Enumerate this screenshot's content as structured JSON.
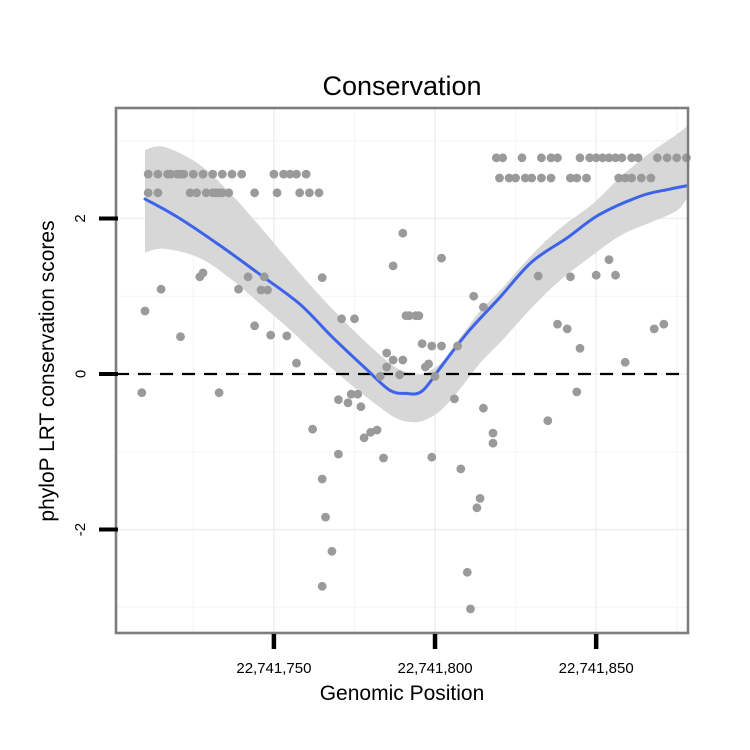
{
  "title": "Conservation",
  "axes": {
    "x": {
      "label": "Genomic Position",
      "ticks": [
        {
          "value": 22741750,
          "label": "22,741,750"
        },
        {
          "value": 22741800,
          "label": "22,741,800"
        },
        {
          "value": 22741850,
          "label": "22,741,850"
        }
      ],
      "minor_gridlines": [
        22741725,
        22741775,
        22741825,
        22741875
      ]
    },
    "y": {
      "label": "phyloP LRT conservation scores",
      "ticks": [
        {
          "value": 2,
          "label": "2"
        },
        {
          "value": 0,
          "label": "0"
        },
        {
          "value": -2,
          "label": "-2"
        }
      ],
      "minor_gridlines": [
        -3,
        -1,
        1,
        3
      ]
    }
  },
  "colors": {
    "point": "#9a9a9a",
    "smooth_line": "#3d63ea",
    "ribbon": "#d7d7d7",
    "panel_border": "#7d7d7d",
    "grid_major": "#ededed",
    "grid_minor": "#f6f6f6",
    "dashed_line": "#000000",
    "tick": "#000000"
  },
  "chart_data": {
    "type": "scatter",
    "title": "Conservation",
    "xlabel": "Genomic Position",
    "ylabel": "phyloP LRT conservation scores",
    "xlim": [
      22741701,
      22741878.5
    ],
    "ylim": [
      -3.33,
      3.42
    ],
    "grid": true,
    "legend": "none",
    "hline": 0,
    "points": [
      [
        22741711,
        2.57
      ],
      [
        22741714,
        2.57
      ],
      [
        22741717,
        2.57
      ],
      [
        22741718,
        2.57
      ],
      [
        22741720,
        2.57
      ],
      [
        22741721,
        2.57
      ],
      [
        22741722,
        2.57
      ],
      [
        22741725,
        2.57
      ],
      [
        22741728,
        2.57
      ],
      [
        22741731,
        2.57
      ],
      [
        22741734,
        2.57
      ],
      [
        22741737,
        2.57
      ],
      [
        22741740,
        2.57
      ],
      [
        22741750,
        2.57
      ],
      [
        22741753,
        2.57
      ],
      [
        22741755,
        2.57
      ],
      [
        22741757,
        2.57
      ],
      [
        22741760,
        2.57
      ],
      [
        22741711,
        2.33
      ],
      [
        22741714,
        2.33
      ],
      [
        22741724,
        2.33
      ],
      [
        22741726,
        2.33
      ],
      [
        22741729,
        2.33
      ],
      [
        22741731,
        2.33
      ],
      [
        22741732,
        2.33
      ],
      [
        22741733,
        2.33
      ],
      [
        22741734,
        2.33
      ],
      [
        22741736,
        2.33
      ],
      [
        22741744,
        2.33
      ],
      [
        22741751,
        2.33
      ],
      [
        22741758,
        2.33
      ],
      [
        22741761,
        2.33
      ],
      [
        22741764,
        2.33
      ],
      [
        22741819,
        2.78
      ],
      [
        22741821,
        2.78
      ],
      [
        22741827,
        2.78
      ],
      [
        22741833,
        2.78
      ],
      [
        22741836,
        2.78
      ],
      [
        22741838,
        2.78
      ],
      [
        22741845,
        2.78
      ],
      [
        22741848,
        2.78
      ],
      [
        22741850,
        2.78
      ],
      [
        22741852,
        2.78
      ],
      [
        22741854,
        2.78
      ],
      [
        22741856,
        2.78
      ],
      [
        22741858,
        2.78
      ],
      [
        22741861,
        2.78
      ],
      [
        22741863,
        2.78
      ],
      [
        22741869,
        2.78
      ],
      [
        22741872,
        2.78
      ],
      [
        22741875,
        2.78
      ],
      [
        22741878,
        2.78
      ],
      [
        22741820,
        2.52
      ],
      [
        22741823,
        2.52
      ],
      [
        22741825,
        2.52
      ],
      [
        22741828,
        2.52
      ],
      [
        22741830,
        2.52
      ],
      [
        22741833,
        2.52
      ],
      [
        22741836,
        2.52
      ],
      [
        22741842,
        2.52
      ],
      [
        22741844,
        2.52
      ],
      [
        22741847,
        2.52
      ],
      [
        22741857,
        2.52
      ],
      [
        22741859,
        2.52
      ],
      [
        22741861,
        2.52
      ],
      [
        22741864,
        2.52
      ],
      [
        22741867,
        2.52
      ],
      [
        22741715,
        1.09
      ],
      [
        22741727,
        1.25
      ],
      [
        22741728,
        1.3
      ],
      [
        22741710,
        0.81
      ],
      [
        22741721,
        0.48
      ],
      [
        22741739,
        1.09
      ],
      [
        22741742,
        1.25
      ],
      [
        22741747,
        1.25
      ],
      [
        22741746,
        1.08
      ],
      [
        22741748,
        1.08
      ],
      [
        22741744,
        0.62
      ],
      [
        22741749,
        0.5
      ],
      [
        22741754,
        0.49
      ],
      [
        22741757,
        0.14
      ],
      [
        22741709,
        -0.24
      ],
      [
        22741733,
        -0.24
      ],
      [
        22741765,
        1.24
      ],
      [
        22741787,
        1.39
      ],
      [
        22741790,
        1.81
      ],
      [
        22741802,
        1.49
      ],
      [
        22741771,
        0.71
      ],
      [
        22741775,
        0.71
      ],
      [
        22741791,
        0.75
      ],
      [
        22741792,
        0.75
      ],
      [
        22741794,
        0.75
      ],
      [
        22741795,
        0.75
      ],
      [
        22741796,
        0.39
      ],
      [
        22741799,
        0.36
      ],
      [
        22741802,
        0.36
      ],
      [
        22741807,
        0.36
      ],
      [
        22741812,
        1.0
      ],
      [
        22741815,
        0.86
      ],
      [
        22741785,
        0.27
      ],
      [
        22741787,
        0.18
      ],
      [
        22741790,
        0.18
      ],
      [
        22741785,
        0.09
      ],
      [
        22741783,
        -0.03
      ],
      [
        22741789,
        -0.01
      ],
      [
        22741797,
        0.09
      ],
      [
        22741798,
        0.13
      ],
      [
        22741800,
        -0.03
      ],
      [
        22741770,
        -0.33
      ],
      [
        22741773,
        -0.37
      ],
      [
        22741774,
        -0.26
      ],
      [
        22741776,
        -0.26
      ],
      [
        22741777,
        -0.42
      ],
      [
        22741762,
        -0.71
      ],
      [
        22741806,
        -0.32
      ],
      [
        22741815,
        -0.44
      ],
      [
        22741832,
        1.26
      ],
      [
        22741842,
        1.25
      ],
      [
        22741850,
        1.27
      ],
      [
        22741856,
        1.27
      ],
      [
        22741854,
        1.47
      ],
      [
        22741838,
        0.64
      ],
      [
        22741841,
        0.58
      ],
      [
        22741845,
        0.33
      ],
      [
        22741859,
        0.15
      ],
      [
        22741868,
        0.58
      ],
      [
        22741871,
        0.64
      ],
      [
        22741844,
        -0.23
      ],
      [
        22741835,
        -0.6
      ],
      [
        22741778,
        -0.82
      ],
      [
        22741780,
        -0.75
      ],
      [
        22741782,
        -0.72
      ],
      [
        22741818,
        -0.76
      ],
      [
        22741818,
        -0.89
      ],
      [
        22741770,
        -1.03
      ],
      [
        22741784,
        -1.08
      ],
      [
        22741799,
        -1.07
      ],
      [
        22741808,
        -1.22
      ],
      [
        22741765,
        -1.35
      ],
      [
        22741814,
        -1.6
      ],
      [
        22741813,
        -1.72
      ],
      [
        22741766,
        -1.84
      ],
      [
        22741768,
        -2.28
      ],
      [
        22741765,
        -2.73
      ],
      [
        22741810,
        -2.55
      ],
      [
        22741811,
        -3.02
      ]
    ],
    "smooth_line": [
      [
        22741710,
        2.25
      ],
      [
        22741720,
        2.02
      ],
      [
        22741733,
        1.66
      ],
      [
        22741746,
        1.27
      ],
      [
        22741758,
        0.9
      ],
      [
        22741768,
        0.48
      ],
      [
        22741779,
        0.05
      ],
      [
        22741786,
        -0.21
      ],
      [
        22741791,
        -0.25
      ],
      [
        22741796,
        -0.22
      ],
      [
        22741802,
        0.1
      ],
      [
        22741810,
        0.53
      ],
      [
        22741820,
        0.98
      ],
      [
        22741830,
        1.44
      ],
      [
        22741841,
        1.75
      ],
      [
        22741851,
        2.05
      ],
      [
        22741864,
        2.29
      ],
      [
        22741872,
        2.37
      ],
      [
        22741878,
        2.42
      ]
    ],
    "ribbon": {
      "x": [
        22741710,
        22741716,
        22741727,
        22741737,
        22741746,
        22741755,
        22741764,
        22741774,
        22741782,
        22741788,
        22741793,
        22741797,
        22741802,
        22741808,
        22741814,
        22741821,
        22741830,
        22741839,
        22741849,
        22741858,
        22741867,
        22741875,
        22741878
      ],
      "upper": [
        2.88,
        2.92,
        2.69,
        2.3,
        1.88,
        1.44,
        1.02,
        0.59,
        0.28,
        0.08,
        0.0,
        0.01,
        0.15,
        0.48,
        0.81,
        1.11,
        1.53,
        1.88,
        2.19,
        2.55,
        2.85,
        3.08,
        3.18
      ],
      "lower": [
        1.56,
        1.61,
        1.49,
        1.21,
        0.89,
        0.57,
        0.22,
        -0.14,
        -0.4,
        -0.57,
        -0.62,
        -0.59,
        -0.46,
        -0.18,
        0.14,
        0.44,
        0.85,
        1.21,
        1.53,
        1.79,
        1.95,
        2.1,
        2.25
      ]
    }
  }
}
